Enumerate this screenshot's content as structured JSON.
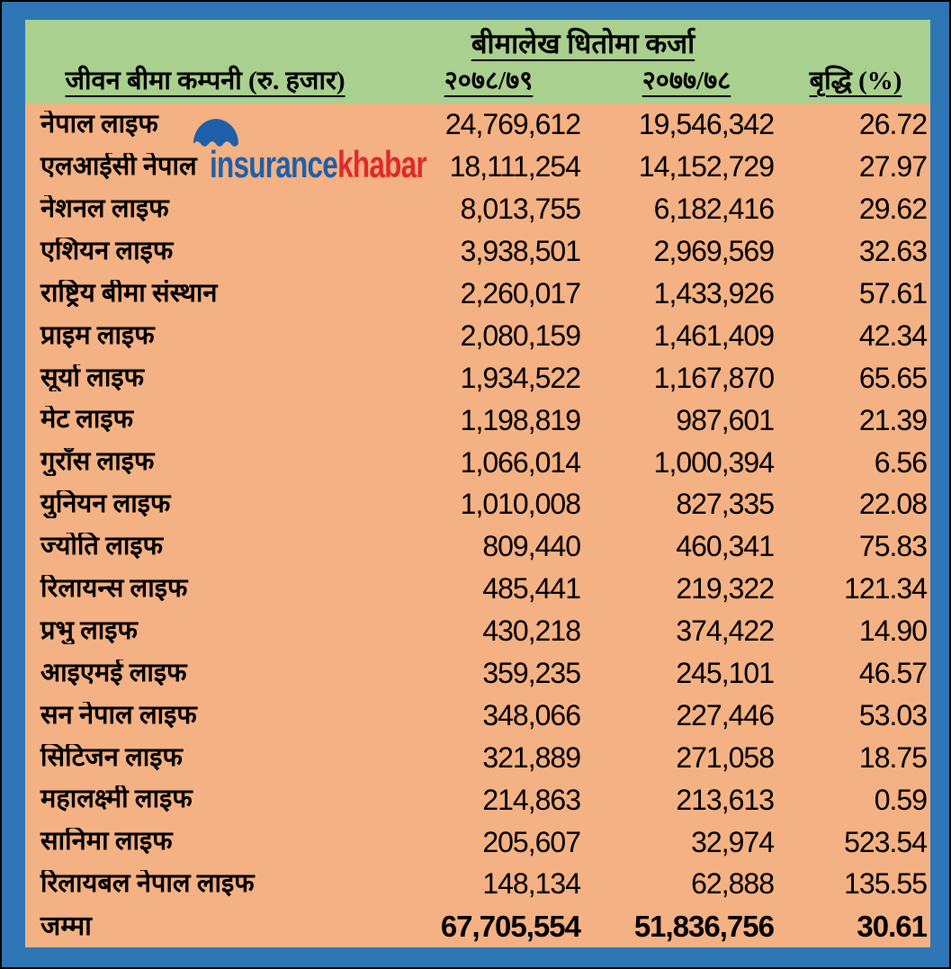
{
  "chart_data": {
    "type": "table",
    "title": "बीमालेख धितोमा कर्जा",
    "columns": [
      "जीवन बीमा कम्पनी (रु. हजार)",
      "२०७८/७९",
      "२०७७/७८",
      "बृद्धि (%)"
    ],
    "rows": [
      [
        "नेपाल लाइफ",
        "24,769,612",
        "19,546,342",
        "26.72"
      ],
      [
        "एलआईसी नेपाल",
        "18,111,254",
        "14,152,729",
        "27.97"
      ],
      [
        "नेशनल लाइफ",
        "8,013,755",
        "6,182,416",
        "29.62"
      ],
      [
        "एशियन लाइफ",
        "3,938,501",
        "2,969,569",
        "32.63"
      ],
      [
        "राष्ट्रिय बीमा संस्थान",
        "2,260,017",
        "1,433,926",
        "57.61"
      ],
      [
        "प्राइम लाइफ",
        "2,080,159",
        "1,461,409",
        "42.34"
      ],
      [
        "सूर्या लाइफ",
        "1,934,522",
        "1,167,870",
        "65.65"
      ],
      [
        "मेट लाइफ",
        "1,198,819",
        "987,601",
        "21.39"
      ],
      [
        "गुराँस लाइफ",
        "1,066,014",
        "1,000,394",
        "6.56"
      ],
      [
        "युनियन लाइफ",
        "1,010,008",
        "827,335",
        "22.08"
      ],
      [
        "ज्योति लाइफ",
        "809,440",
        "460,341",
        "75.83"
      ],
      [
        "रिलायन्स लाइफ",
        "485,441",
        "219,322",
        "121.34"
      ],
      [
        "प्रभु लाइफ",
        "430,218",
        "374,422",
        "14.90"
      ],
      [
        "आइएमई लाइफ",
        "359,235",
        "245,101",
        "46.57"
      ],
      [
        "सन नेपाल लाइफ",
        "348,066",
        "227,446",
        "53.03"
      ],
      [
        "सिटिजन लाइफ",
        "321,889",
        "271,058",
        "18.75"
      ],
      [
        "महालक्ष्मी लाइफ",
        "214,863",
        "213,613",
        "0.59"
      ],
      [
        "सानिमा लाइफ",
        "205,607",
        "32,974",
        "523.54"
      ],
      [
        "रिलायबल नेपाल लाइफ",
        "148,134",
        "62,888",
        "135.55"
      ]
    ],
    "total_row": [
      "जम्मा",
      "67,705,554",
      "51,836,756",
      "30.61"
    ]
  },
  "logo": {
    "icon": "umbrella-icon",
    "text_blue": "insurance",
    "text_red": "khabar"
  },
  "colors": {
    "frame_blue": "#2E75B6",
    "header_green": "#A9D08E",
    "body_salmon": "#F4B183",
    "text_black": "#000000",
    "logo_blue": "#1E5FA9",
    "logo_red": "#DE2A2B"
  }
}
